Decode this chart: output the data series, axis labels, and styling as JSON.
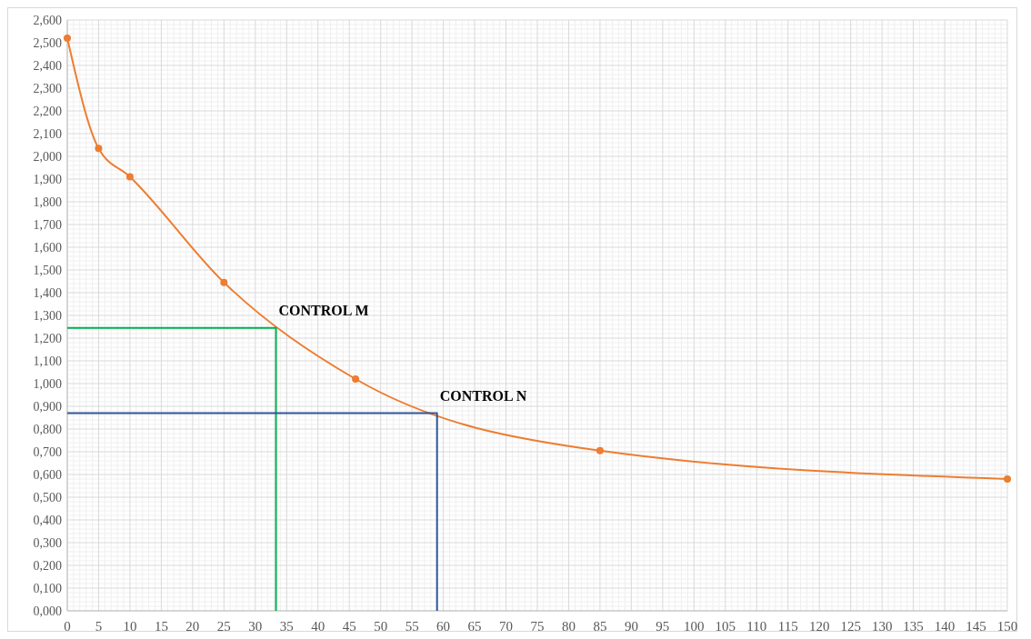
{
  "chart_data": {
    "type": "line",
    "x": [
      0,
      5,
      10,
      25,
      46,
      85,
      150
    ],
    "series": [
      {
        "color": "#ed7d31",
        "marker": "circle",
        "values": [
          2.52,
          2.035,
          1.91,
          1.445,
          1.02,
          0.705,
          0.58
        ]
      },
      {
        "color": "#00b050",
        "marker": "none",
        "x": [
          0,
          33.3,
          33.3
        ],
        "values": [
          1.245,
          1.245,
          0
        ]
      },
      {
        "color": "#2f5597",
        "marker": "none",
        "x": [
          0,
          59,
          59
        ],
        "values": [
          0.87,
          0.87,
          0
        ]
      }
    ],
    "annotations": [
      {
        "text": "CONTROL M",
        "x": 33.3,
        "y": 1.245
      },
      {
        "text": "CONTROL N",
        "x": 59,
        "y": 0.87
      }
    ],
    "xlim": [
      0,
      150
    ],
    "xticks": [
      0,
      5,
      10,
      15,
      20,
      25,
      30,
      35,
      40,
      45,
      50,
      55,
      60,
      65,
      70,
      75,
      80,
      85,
      90,
      95,
      100,
      105,
      110,
      115,
      120,
      125,
      130,
      135,
      140,
      145,
      150
    ],
    "ylim": [
      0,
      2.6
    ],
    "yticks": [
      {
        "value": 0,
        "label": "0,000"
      },
      {
        "value": 0.1,
        "label": "0,100"
      },
      {
        "value": 0.2,
        "label": "0,200"
      },
      {
        "value": 0.3,
        "label": "0,300"
      },
      {
        "value": 0.4,
        "label": "0,400"
      },
      {
        "value": 0.5,
        "label": "0,500"
      },
      {
        "value": 0.6,
        "label": "0,600"
      },
      {
        "value": 0.7,
        "label": "0,700"
      },
      {
        "value": 0.8,
        "label": "0,800"
      },
      {
        "value": 0.9,
        "label": "0,900"
      },
      {
        "value": 1,
        "label": "1,000"
      },
      {
        "value": 1.1,
        "label": "1,100"
      },
      {
        "value": 1.2,
        "label": "1,200"
      },
      {
        "value": 1.3,
        "label": "1,300"
      },
      {
        "value": 1.4,
        "label": "1,400"
      },
      {
        "value": 1.5,
        "label": "1,500"
      },
      {
        "value": 1.6,
        "label": "1,600"
      },
      {
        "value": 1.7,
        "label": "1,700"
      },
      {
        "value": 1.8,
        "label": "1,800"
      },
      {
        "value": 1.9,
        "label": "1,900"
      },
      {
        "value": 2,
        "label": "2,000"
      },
      {
        "value": 2.1,
        "label": "2,100"
      },
      {
        "value": 2.2,
        "label": "2,200"
      },
      {
        "value": 2.3,
        "label": "2,300"
      },
      {
        "value": 2.4,
        "label": "2,400"
      },
      {
        "value": 2.5,
        "label": "2,500"
      },
      {
        "value": 2.6,
        "label": "2,600"
      }
    ],
    "grid": true
  }
}
